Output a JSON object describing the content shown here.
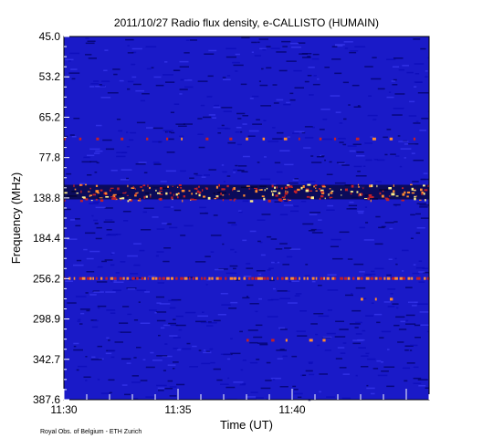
{
  "chart_data": {
    "type": "heatmap",
    "title": "2011/10/27  Radio flux density, e-CALLISTO (HUMAIN)",
    "xlabel": "Time (UT)",
    "ylabel": "Frequency (MHz)",
    "x_range": [
      "11:30",
      "11:46:00"
    ],
    "x_tick_labels": [
      {
        "t": "11:30",
        "label": "11:30"
      },
      {
        "t": "11:35",
        "label": "11:35"
      },
      {
        "t": "11:40",
        "label": "11:40"
      }
    ],
    "y_tick_labels": [
      "45.0",
      "53.2",
      "65.2",
      "77.8",
      "138.8",
      "184.4",
      "256.2",
      "298.9",
      "342.7",
      "387.6"
    ],
    "grid": false,
    "colorscale": [
      "#000060",
      "#0b0bb8",
      "#3a3af0",
      "#000000",
      "#c0202a",
      "#ff8a30",
      "#ffee88"
    ],
    "background_level": "low (blue)",
    "features": [
      {
        "name": "persistent interference band",
        "frequency_mhz": 130,
        "start": "11:30",
        "end": "11:46",
        "intensity": "high"
      },
      {
        "name": "persistent interference band",
        "frequency_mhz": 256,
        "start": "11:30",
        "end": "11:46",
        "intensity": "medium-high"
      },
      {
        "name": "intermittent carrier",
        "frequency_mhz": 72,
        "start": "11:30",
        "end": "11:46",
        "intensity": "medium"
      },
      {
        "name": "narrowband burst",
        "frequency_mhz": 278,
        "start": "11:43",
        "end": "11:45",
        "intensity": "medium"
      },
      {
        "name": "narrowband burst",
        "frequency_mhz": 322,
        "start": "11:38",
        "end": "11:42",
        "intensity": "medium"
      }
    ]
  },
  "credit": "Royal Obs. of Belgium - ETH Zurich"
}
